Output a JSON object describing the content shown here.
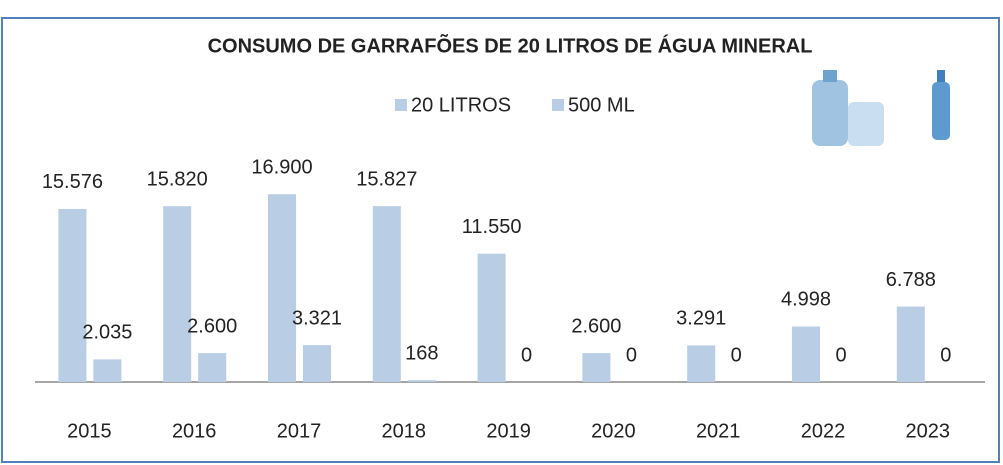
{
  "chart_data": {
    "type": "bar",
    "title": "CONSUMO DE GARRAFÕES DE 20 LITROS DE ÁGUA MINERAL",
    "categories": [
      "2015",
      "2016",
      "2017",
      "2018",
      "2019",
      "2020",
      "2021",
      "2022",
      "2023"
    ],
    "series": [
      {
        "name": "20 LITROS",
        "color": "#b9cde5",
        "values": [
          15576,
          15820,
          16900,
          15827,
          11550,
          2600,
          3291,
          4998,
          6788
        ],
        "value_labels": [
          "15.576",
          "15.820",
          "16.900",
          "15.827",
          "11.550",
          "2.600",
          "3.291",
          "4.998",
          "6.788"
        ]
      },
      {
        "name": "500 ML",
        "color": "#b9cde5",
        "values": [
          2035,
          2600,
          3321,
          168,
          0,
          0,
          0,
          0,
          0
        ],
        "value_labels": [
          "2.035",
          "2.600",
          "3.321",
          "168",
          "0",
          "0",
          "0",
          "0",
          "0"
        ]
      }
    ],
    "ylim": [
      0,
      18000
    ]
  }
}
